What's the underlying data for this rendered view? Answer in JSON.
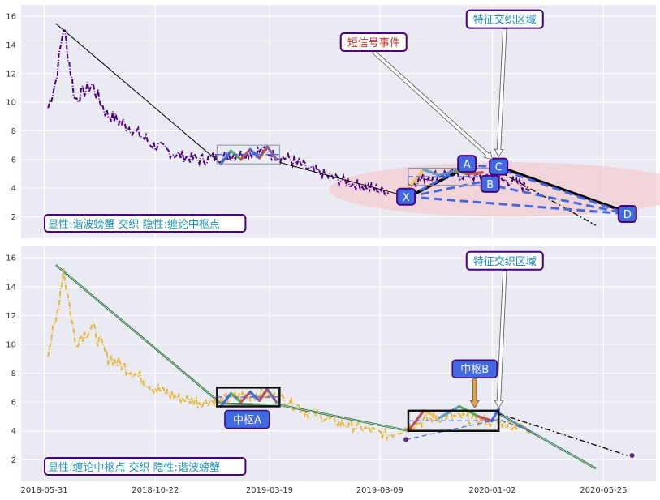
{
  "colors": {
    "panel_bg": "#eaeaf2",
    "grid": "#ffffff",
    "dark_purple": "#4b0082",
    "gold": "#e8b63a",
    "royal_blue": "#4169e1",
    "black": "#000000",
    "red_annotation": "#c0392b",
    "teal_text": "#1f8fb3",
    "ellipse": "#f4c6cc"
  },
  "chart_data": [
    {
      "type": "line",
      "panel": "top",
      "ylim": [
        0.5,
        16.8
      ],
      "yticks": [
        "2",
        "4",
        "6",
        "8",
        "10",
        "12",
        "14",
        "16"
      ],
      "grid": true,
      "xlim": [
        "2018-05-01",
        "2020-08-01"
      ],
      "series": [
        {
          "kind": "price",
          "style": "dash-dot",
          "color": "#4b0082",
          "anchors": [
            [
              "2018-06-05",
              9.6
            ],
            [
              "2018-06-15",
              11.5
            ],
            [
              "2018-06-25",
              15.3
            ],
            [
              "2018-07-10",
              10.2
            ],
            [
              "2018-08-01",
              11.2
            ],
            [
              "2018-08-20",
              9.2
            ],
            [
              "2018-09-20",
              8.2
            ],
            [
              "2018-10-20",
              7.0
            ],
            [
              "2018-11-20",
              6.3
            ],
            [
              "2018-12-20",
              6.0
            ],
            [
              "2019-01-20",
              6.2
            ],
            [
              "2019-02-10",
              6.4
            ],
            [
              "2019-03-10",
              6.6
            ],
            [
              "2019-04-10",
              6.1
            ],
            [
              "2019-05-10",
              5.3
            ],
            [
              "2019-06-15",
              4.6
            ],
            [
              "2019-07-15",
              4.2
            ],
            [
              "2019-08-20",
              3.7
            ]
          ]
        },
        {
          "kind": "price",
          "style": "dash-dot",
          "color": "#4b0082",
          "anchors": [
            [
              "2019-09-15",
              4.3
            ],
            [
              "2019-10-10",
              4.8
            ],
            [
              "2019-11-01",
              5.0
            ],
            [
              "2019-12-01",
              4.9
            ],
            [
              "2020-01-01",
              4.6
            ],
            [
              "2020-01-25",
              4.5
            ],
            [
              "2020-02-20",
              4.0
            ]
          ]
        },
        {
          "kind": "trend",
          "style": "solid",
          "color": "#000000",
          "points": [
            [
              "2018-06-15",
              15.5
            ],
            [
              "2019-01-15",
              5.7
            ]
          ]
        },
        {
          "kind": "trend",
          "style": "solid",
          "color": "#000000",
          "points": [
            [
              "2019-04-01",
              5.8
            ],
            [
              "2019-09-15",
              3.4
            ]
          ]
        },
        {
          "kind": "trend",
          "style": "solid-thick",
          "color": "#000000",
          "points": [
            [
              "2019-09-20",
              3.5
            ],
            [
              "2019-11-30",
              5.5
            ]
          ]
        },
        {
          "kind": "trend",
          "style": "solid-thick",
          "color": "#000000",
          "points": [
            [
              "2020-01-05",
              5.6
            ],
            [
              "2020-06-25",
              2.3
            ]
          ]
        },
        {
          "kind": "trend",
          "style": "dash-dot",
          "color": "#000000",
          "points": [
            [
              "2020-01-10",
              5.2
            ],
            [
              "2020-05-15",
              1.4
            ]
          ]
        },
        {
          "kind": "trend",
          "style": "thick-dashed",
          "color": "#4169e1",
          "points": [
            [
              "2019-09-15",
              3.4
            ],
            [
              "2019-11-30",
              5.6
            ],
            [
              "2020-01-03",
              5.5
            ],
            [
              "2020-06-25",
              2.2
            ]
          ]
        },
        {
          "kind": "trend",
          "style": "thick-dashed",
          "color": "#4169e1",
          "points": [
            [
              "2019-09-15",
              3.4
            ],
            [
              "2019-12-15",
              4.4
            ],
            [
              "2020-06-25",
              2.2
            ]
          ]
        },
        {
          "kind": "trend",
          "style": "thick-dashed",
          "color": "#4169e1",
          "points": [
            [
              "2019-09-15",
              3.4
            ],
            [
              "2020-06-25",
              2.2
            ]
          ]
        },
        {
          "kind": "zigzag",
          "style": "solid",
          "colors": [
            "#4169e1",
            "#5aa85a",
            "#c0504d",
            "#4169e1",
            "#c0504d",
            "#8064a2"
          ],
          "points": [
            [
              "2019-01-15",
              5.7
            ],
            [
              "2019-01-28",
              6.6
            ],
            [
              "2019-02-10",
              6.0
            ],
            [
              "2019-02-22",
              6.7
            ],
            [
              "2019-03-06",
              6.1
            ],
            [
              "2019-03-16",
              6.9
            ],
            [
              "2019-03-28",
              6.0
            ]
          ]
        },
        {
          "kind": "zigzag",
          "style": "solid",
          "colors": [
            "#f0c060",
            "#5aa0d0",
            "#5a8ad0",
            "#5aa85a",
            "#c0504d"
          ],
          "points": [
            [
              "2019-09-15",
              4.0
            ],
            [
              "2019-10-05",
              5.3
            ],
            [
              "2019-10-25",
              4.9
            ],
            [
              "2019-11-15",
              5.2
            ],
            [
              "2019-12-01",
              5.0
            ],
            [
              "2019-12-20",
              5.1
            ]
          ]
        }
      ],
      "boxes": [
        {
          "x0": "2019-01-10",
          "x1": "2019-04-01",
          "y0": 5.7,
          "y1": 7.0
        },
        {
          "x0": "2019-09-15",
          "x1": "2020-01-10",
          "y0": 4.2,
          "y1": 5.4
        }
      ],
      "markers": [
        {
          "label": "X",
          "x": "2019-09-12",
          "y": 3.4
        },
        {
          "label": "A",
          "x": "2019-11-30",
          "y": 5.7
        },
        {
          "label": "B",
          "x": "2019-12-30",
          "y": 4.3
        },
        {
          "label": "C",
          "x": "2020-01-10",
          "y": 5.5
        },
        {
          "label": "D",
          "x": "2020-06-25",
          "y": 2.2
        }
      ],
      "callouts": [
        {
          "text": "短信号事件",
          "x": "2019-08-01",
          "y": 14.2,
          "color": "red",
          "arrow_to_x": "2020-01-02",
          "arrow_to_y": 6.0
        },
        {
          "text": "特征交织区域",
          "x": "2020-01-18",
          "y": 15.8,
          "color": "teal",
          "arrow_to_x": "2020-01-10",
          "arrow_to_y": 6.2
        }
      ],
      "region": {
        "cx": "2020-01-25",
        "cy": 3.9,
        "rx_days": 235,
        "ry": 1.9
      },
      "legend_text": "显性:谐波螃蟹 交织 隐性:缠论中枢点"
    },
    {
      "type": "line",
      "panel": "bottom",
      "ylim": [
        0.5,
        16.8
      ],
      "yticks": [
        "2",
        "4",
        "6",
        "8",
        "10",
        "12",
        "14",
        "16"
      ],
      "grid": true,
      "xlim": [
        "2018-05-01",
        "2020-08-01"
      ],
      "xticks": [
        "2018-05-31",
        "2018-10-22",
        "2019-03-19",
        "2019-08-09",
        "2020-01-02",
        "2020-05-25"
      ],
      "series": [
        {
          "kind": "price",
          "style": "dash-dot",
          "color": "#e8b63a",
          "anchors": [
            [
              "2018-06-05",
              9.6
            ],
            [
              "2018-06-15",
              11.5
            ],
            [
              "2018-06-25",
              15.3
            ],
            [
              "2018-07-10",
              10.2
            ],
            [
              "2018-08-01",
              11.2
            ],
            [
              "2018-08-20",
              9.2
            ],
            [
              "2018-09-20",
              8.2
            ],
            [
              "2018-10-20",
              7.0
            ],
            [
              "2018-11-20",
              6.3
            ],
            [
              "2018-12-20",
              6.0
            ],
            [
              "2019-01-20",
              6.2
            ],
            [
              "2019-02-10",
              6.4
            ],
            [
              "2019-03-10",
              6.6
            ],
            [
              "2019-04-10",
              6.1
            ],
            [
              "2019-05-10",
              5.3
            ],
            [
              "2019-06-15",
              4.6
            ],
            [
              "2019-07-15",
              4.2
            ],
            [
              "2019-08-20",
              3.7
            ],
            [
              "2019-09-15",
              4.3
            ],
            [
              "2019-10-10",
              4.8
            ],
            [
              "2019-11-01",
              5.0
            ],
            [
              "2019-12-01",
              4.9
            ],
            [
              "2020-01-01",
              4.6
            ],
            [
              "2020-01-25",
              4.5
            ],
            [
              "2020-02-20",
              4.0
            ]
          ]
        },
        {
          "kind": "trend",
          "style": "solid-green",
          "color": "#2a6b3a",
          "points": [
            [
              "2018-06-15",
              15.5
            ],
            [
              "2019-01-15",
              5.9
            ],
            [
              "2019-04-01",
              5.8
            ],
            [
              "2019-09-15",
              4.0
            ]
          ]
        },
        {
          "kind": "trend",
          "style": "solid-green",
          "color": "#2a6b3a",
          "points": [
            [
              "2020-01-10",
              5.2
            ],
            [
              "2020-05-15",
              1.4
            ]
          ]
        },
        {
          "kind": "trend",
          "style": "dash-dot",
          "color": "#000000",
          "points": [
            [
              "2020-01-10",
              5.2
            ],
            [
              "2020-06-25",
              2.3
            ]
          ]
        },
        {
          "kind": "trend",
          "style": "dashed",
          "color": "#4169e1",
          "points": [
            [
              "2019-09-12",
              3.4
            ],
            [
              "2020-01-10",
              4.8
            ],
            [
              "2020-02-20",
              4.0
            ]
          ]
        },
        {
          "kind": "trend",
          "style": "dashed",
          "color": "#4169e1",
          "points": [
            [
              "2020-01-10",
              5.3
            ],
            [
              "2020-02-28",
              3.7
            ]
          ]
        },
        {
          "kind": "zigzag",
          "style": "solid",
          "colors": [
            "#4169e1",
            "#5aa85a",
            "#c0504d",
            "#4169e1",
            "#c0504d",
            "#8064a2"
          ],
          "points": [
            [
              "2019-01-15",
              5.7
            ],
            [
              "2019-01-28",
              6.6
            ],
            [
              "2019-02-10",
              6.0
            ],
            [
              "2019-02-22",
              6.7
            ],
            [
              "2019-03-06",
              6.1
            ],
            [
              "2019-03-16",
              6.9
            ],
            [
              "2019-03-28",
              6.0
            ]
          ]
        },
        {
          "kind": "zigzag",
          "style": "solid",
          "colors": [
            "#c0504d",
            "#f0c060",
            "#5aa0d0",
            "#5aa85a",
            "#c0504d",
            "#4169e1"
          ],
          "points": [
            [
              "2019-09-15",
              4.0
            ],
            [
              "2019-10-05",
              5.4
            ],
            [
              "2019-10-25",
              4.9
            ],
            [
              "2019-11-20",
              5.7
            ],
            [
              "2019-12-15",
              5.0
            ],
            [
              "2020-01-01",
              4.7
            ],
            [
              "2020-01-10",
              5.5
            ]
          ]
        }
      ],
      "boxes": [
        {
          "x0": "2019-01-10",
          "x1": "2019-04-01",
          "y0": 5.7,
          "y1": 7.0
        },
        {
          "x0": "2019-09-15",
          "x1": "2020-01-10",
          "y0": 4.0,
          "y1": 5.4
        }
      ],
      "points": [
        {
          "x": "2019-09-12",
          "y": 3.4
        },
        {
          "x": "2020-07-01",
          "y": 2.3
        }
      ],
      "callouts": [
        {
          "text": "中枢A",
          "x": "2019-02-18",
          "y": 4.8,
          "style": "blue-box"
        },
        {
          "text": "中枢B",
          "x": "2019-12-10",
          "y": 8.3,
          "style": "blue-box",
          "arrow_to_x": "2019-12-10",
          "arrow_to_y": 5.6
        },
        {
          "text": "特征交织区域",
          "x": "2020-01-18",
          "y": 15.8,
          "color": "teal",
          "arrow_to_x": "2020-01-10",
          "arrow_to_y": 5.6
        }
      ],
      "legend_text": "显性:缠论中枢点 交织 隐性:谐波螃蟹"
    }
  ]
}
